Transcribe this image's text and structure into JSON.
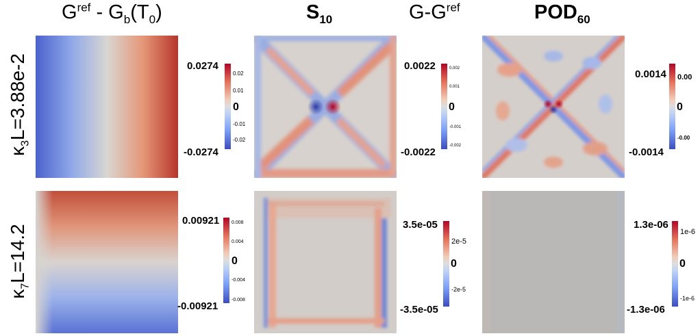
{
  "columns": {
    "c1": {
      "a": "G",
      "a_sup": "ref",
      "b": " - G",
      "b_sub": "b",
      "c": "(T",
      "c_sub": "0",
      "d": ")"
    },
    "c2": {
      "a": "S",
      "a_sub": "10"
    },
    "c3": {
      "a": "G-G",
      "a_sup": "ref"
    },
    "c4": {
      "a": "POD",
      "a_sub": "60"
    }
  },
  "rows": {
    "r1": {
      "a": "κ",
      "a_sub": "3",
      "b": "L=3.88e-2"
    },
    "r2": {
      "a": "κ",
      "a_sub": "7",
      "b": "L=14.2"
    }
  },
  "colorbars": {
    "r1c1": {
      "max": "0.0274",
      "min": "-0.0274",
      "ticks": [
        "0.02",
        "0.01",
        "0",
        "-0.01",
        "-0.02"
      ]
    },
    "r1c2": {
      "max": "0.0022",
      "min": "-0.0022",
      "ticks": [
        "0.002",
        "0.001",
        "0",
        "-0.001",
        "-0.002"
      ]
    },
    "r1c3": {
      "max": "0.0014",
      "min": "-0.0014",
      "ticks": [
        "0.00",
        "0",
        "-0.00"
      ]
    },
    "r2c1": {
      "max": "0.00921",
      "min": "-0.00921",
      "ticks": [
        "0.008",
        "0.004",
        "0",
        "-0.004",
        "-0.008"
      ]
    },
    "r2c2": {
      "max": "3.5e-05",
      "min": "-3.5e-05",
      "ticks": [
        "2e-5",
        "0",
        "-2e-5"
      ]
    },
    "r2c3": {
      "max": "1.3e-06",
      "min": "-1.3e-06",
      "ticks": [
        "1e-6",
        "0",
        "-1e-6"
      ]
    }
  },
  "colormap": {
    "high": "#b40426",
    "mid": "#dddddd",
    "low": "#3b4cc0"
  }
}
